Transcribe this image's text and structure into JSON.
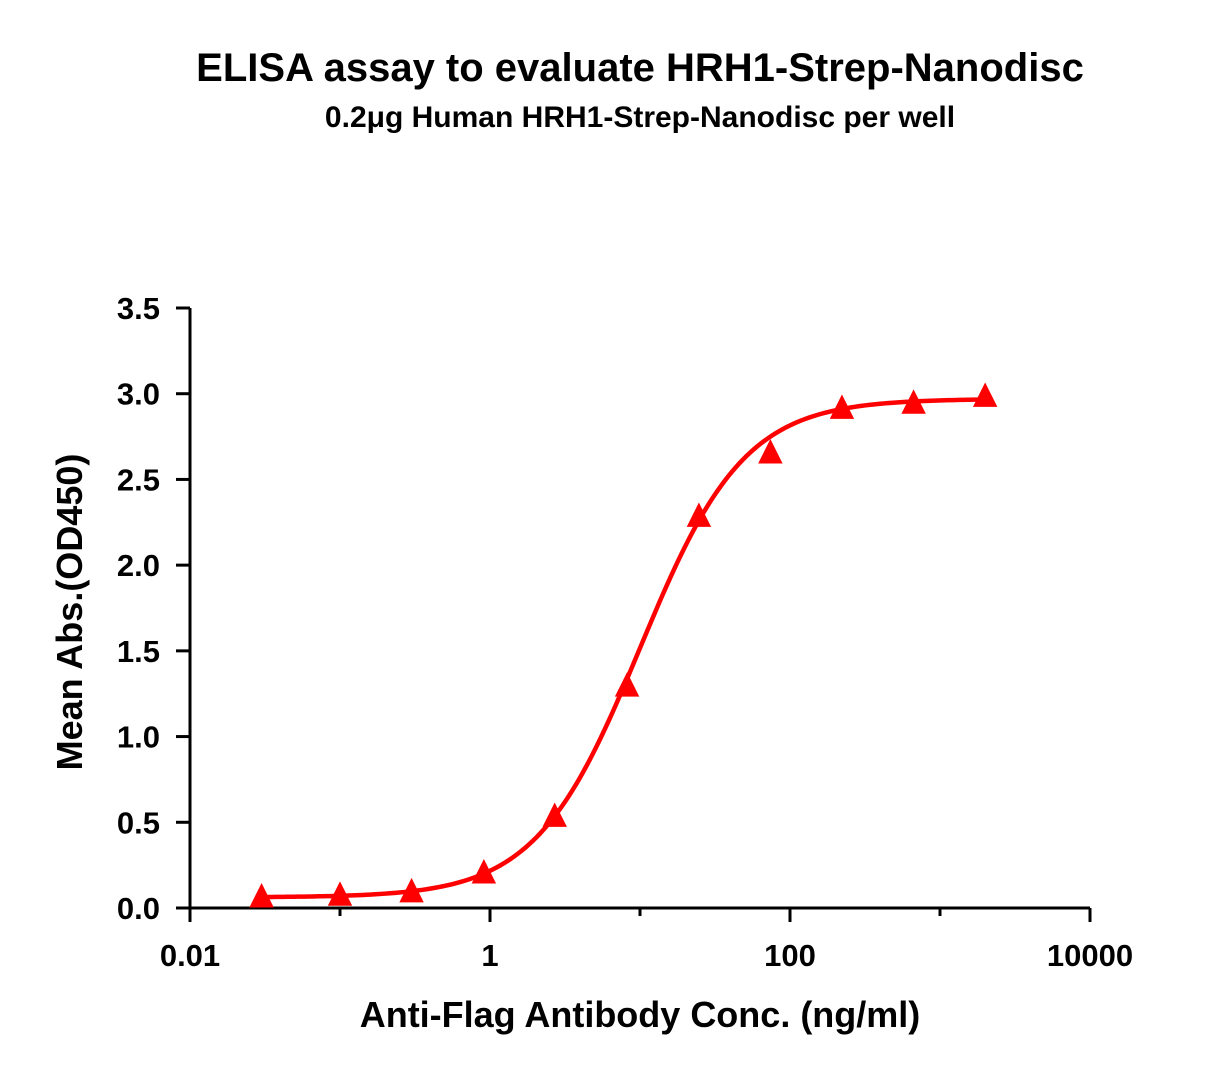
{
  "chart_data": {
    "type": "scatter",
    "title": "ELISA assay to evaluate HRH1-Strep-Nanodisc",
    "subtitle": "0.2μg Human HRH1-Strep-Nanodisc per well",
    "xlabel": "Anti-Flag Antibody Conc. (ng/ml)",
    "ylabel": "Mean Abs.(OD450)",
    "x_scale": "log",
    "xlim": [
      0.01,
      10000
    ],
    "ylim": [
      0,
      3.5
    ],
    "x_ticks": [
      0.01,
      1,
      100,
      10000
    ],
    "x_tick_labels": [
      "0.01",
      "1",
      "100",
      "10000"
    ],
    "y_ticks": [
      0,
      0.5,
      1,
      1.5,
      2,
      2.5,
      3,
      3.5
    ],
    "y_tick_labels": [
      "0.0",
      "0.5",
      "1.0",
      "1.5",
      "2.0",
      "2.5",
      "3.0",
      "3.5"
    ],
    "grid": false,
    "series": [
      {
        "marker": "triangle",
        "color": "#ff0000",
        "points": [
          {
            "x": 0.03,
            "y": 0.06
          },
          {
            "x": 0.1,
            "y": 0.07
          },
          {
            "x": 0.3,
            "y": 0.09
          },
          {
            "x": 0.91,
            "y": 0.2
          },
          {
            "x": 2.7,
            "y": 0.53
          },
          {
            "x": 8.2,
            "y": 1.29
          },
          {
            "x": 24.7,
            "y": 2.28
          },
          {
            "x": 74,
            "y": 2.65
          },
          {
            "x": 222,
            "y": 2.91
          },
          {
            "x": 667,
            "y": 2.94
          },
          {
            "x": 2000,
            "y": 2.98
          }
        ]
      }
    ],
    "fit_curve": {
      "color": "#ff0000",
      "bottom": 0.062,
      "top": 2.97,
      "ec50": 10,
      "hill": 1.25
    }
  }
}
